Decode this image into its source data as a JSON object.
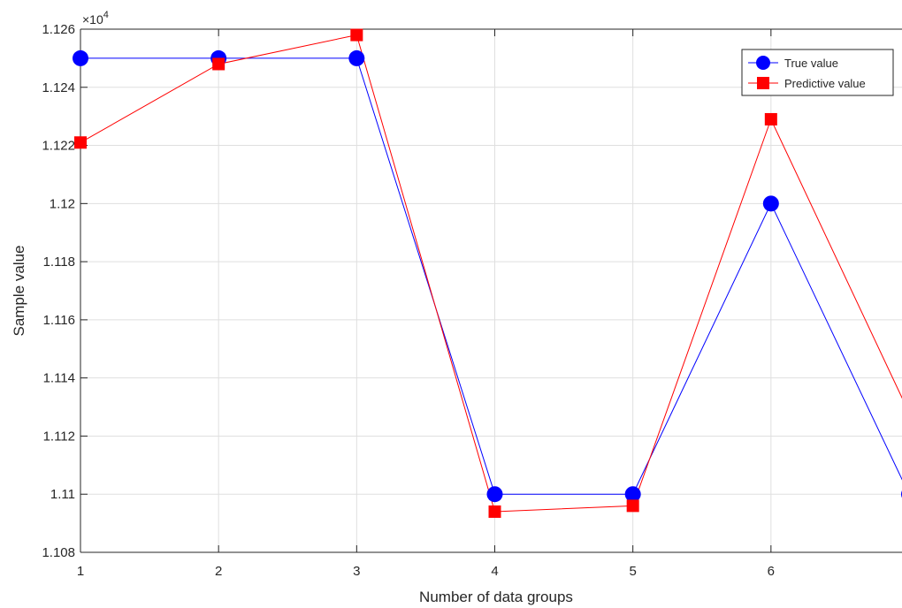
{
  "chart_data": {
    "type": "line",
    "title": "",
    "xlabel": "Number of data groups",
    "ylabel": "Sample value",
    "y_exponent_label": "×10",
    "y_exponent_power": "4",
    "xlim": [
      1,
      7
    ],
    "ylim": [
      1.108,
      1.126
    ],
    "x": [
      1,
      2,
      3,
      4,
      5,
      6,
      7
    ],
    "x_ticks": [
      1,
      2,
      3,
      4,
      5,
      6,
      7
    ],
    "x_tick_labels": [
      "1",
      "2",
      "3",
      "4",
      "5",
      "6",
      ""
    ],
    "y_ticks": [
      1.108,
      1.11,
      1.112,
      1.114,
      1.116,
      1.118,
      1.12,
      1.122,
      1.124,
      1.126
    ],
    "y_tick_labels": [
      "1.108",
      "1.11",
      "1.112",
      "1.114",
      "1.116",
      "1.118",
      "1.12",
      "1.122",
      "1.124",
      "1.126"
    ],
    "grid": true,
    "legend_position": "top-right",
    "series": [
      {
        "name": "True value",
        "color": "#0000ff",
        "marker": "circle",
        "values": [
          1.125,
          1.125,
          1.125,
          1.11,
          1.11,
          1.12,
          1.11
        ]
      },
      {
        "name": "Predictive value",
        "color": "#ff0000",
        "marker": "square",
        "values": [
          1.1221,
          1.1248,
          1.1258,
          1.1094,
          1.1096,
          1.1229,
          1.1128
        ]
      }
    ]
  }
}
